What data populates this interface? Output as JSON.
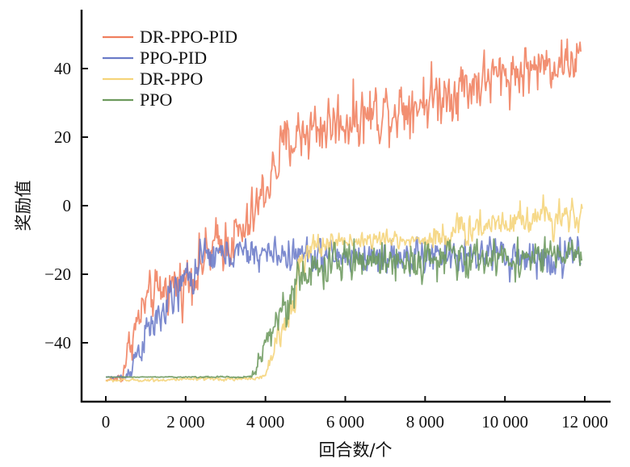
{
  "chart_data": {
    "type": "line",
    "title": "",
    "xlabel": "回合数/个",
    "ylabel": "奖励值",
    "xlim": [
      -1300,
      12200
    ],
    "ylim": [
      -58,
      58
    ],
    "xticks": [
      0,
      2000,
      4000,
      6000,
      8000,
      10000,
      12000
    ],
    "xtick_labels": [
      "0",
      "2 000",
      "4 000",
      "6 000",
      "8 000",
      "10 000",
      "12 000"
    ],
    "yticks": [
      -40,
      -20,
      0,
      20,
      40
    ],
    "ytick_labels": [
      "−40",
      "−20",
      "0",
      "20",
      "40"
    ],
    "grid": false,
    "legend_position": "top-left",
    "series": [
      {
        "name": "DR-PPO-PID",
        "color": "#f07f5e",
        "x_end": 11900,
        "clip_max": 51,
        "mean": [
          [
            0,
            -51
          ],
          [
            400,
            -50
          ],
          [
            600,
            -40
          ],
          [
            1000,
            -28
          ],
          [
            1500,
            -24
          ],
          [
            2000,
            -22
          ],
          [
            2500,
            -15
          ],
          [
            3000,
            -10
          ],
          [
            3500,
            -8
          ],
          [
            4000,
            5
          ],
          [
            4500,
            18
          ],
          [
            5000,
            22
          ],
          [
            6000,
            25
          ],
          [
            7000,
            28
          ],
          [
            8000,
            31
          ],
          [
            9000,
            35
          ],
          [
            10000,
            38
          ],
          [
            11000,
            41
          ],
          [
            11900,
            43
          ]
        ],
        "noise": [
          [
            0,
            0
          ],
          [
            400,
            2
          ],
          [
            600,
            5
          ],
          [
            2000,
            7
          ],
          [
            4000,
            7
          ],
          [
            5000,
            8
          ],
          [
            8000,
            8
          ],
          [
            11900,
            6
          ]
        ]
      },
      {
        "name": "PPO-PID",
        "color": "#6b7bc8",
        "x_end": 11900,
        "clip_max": -9,
        "mean": [
          [
            0,
            -50
          ],
          [
            500,
            -50
          ],
          [
            700,
            -45
          ],
          [
            1000,
            -38
          ],
          [
            1500,
            -30
          ],
          [
            2000,
            -22
          ],
          [
            2500,
            -15
          ],
          [
            3000,
            -14
          ],
          [
            4000,
            -14
          ],
          [
            6000,
            -15
          ],
          [
            8000,
            -15
          ],
          [
            11900,
            -15
          ]
        ],
        "noise": [
          [
            0,
            0
          ],
          [
            500,
            1
          ],
          [
            700,
            4
          ],
          [
            2000,
            6
          ],
          [
            3000,
            4
          ],
          [
            11900,
            5
          ]
        ]
      },
      {
        "name": "DR-PPO",
        "color": "#f5d47a",
        "x_end": 11950,
        "clip_max": 10,
        "mean": [
          [
            0,
            -51
          ],
          [
            3500,
            -50.5
          ],
          [
            4000,
            -50
          ],
          [
            4100,
            -45
          ],
          [
            4500,
            -35
          ],
          [
            4800,
            -20
          ],
          [
            5200,
            -12
          ],
          [
            6000,
            -10
          ],
          [
            8000,
            -10
          ],
          [
            9000,
            -7
          ],
          [
            10000,
            -4
          ],
          [
            11000,
            -3
          ],
          [
            11950,
            -2
          ]
        ],
        "noise": [
          [
            0,
            0.4
          ],
          [
            4000,
            0.5
          ],
          [
            4100,
            3
          ],
          [
            4800,
            5
          ],
          [
            5200,
            3
          ],
          [
            8000,
            2
          ],
          [
            8200,
            4
          ],
          [
            11950,
            5
          ]
        ]
      },
      {
        "name": "PPO",
        "color": "#6d9a5e",
        "x_end": 11950,
        "clip_max": -9,
        "mean": [
          [
            0,
            -50
          ],
          [
            3600,
            -50
          ],
          [
            3800,
            -47
          ],
          [
            4000,
            -40
          ],
          [
            4500,
            -28
          ],
          [
            5000,
            -20
          ],
          [
            5500,
            -18
          ],
          [
            6000,
            -16
          ],
          [
            11950,
            -15
          ]
        ],
        "noise": [
          [
            0,
            0
          ],
          [
            3600,
            0.3
          ],
          [
            3800,
            3
          ],
          [
            4500,
            6
          ],
          [
            5500,
            5
          ],
          [
            11950,
            4.5
          ]
        ]
      }
    ]
  }
}
